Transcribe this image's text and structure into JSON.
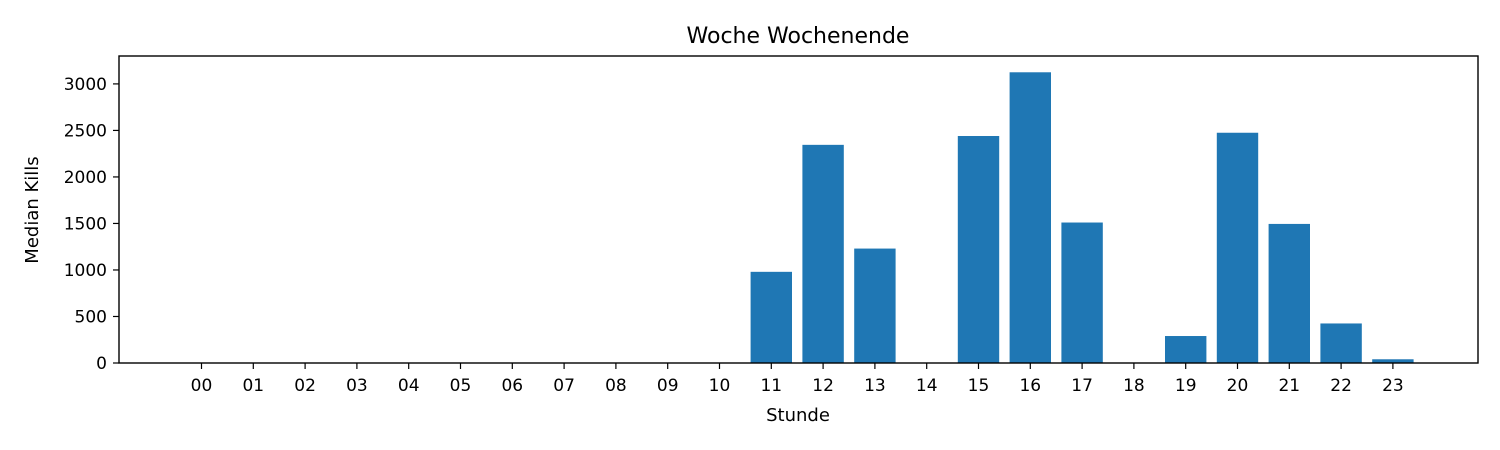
{
  "chart_data": {
    "type": "bar",
    "title": "Woche Wochenende",
    "xlabel": "Stunde",
    "ylabel": "Median Kills",
    "categories": [
      "00",
      "01",
      "02",
      "03",
      "04",
      "05",
      "06",
      "07",
      "08",
      "09",
      "10",
      "11",
      "12",
      "13",
      "14",
      "15",
      "16",
      "17",
      "18",
      "19",
      "20",
      "21",
      "22",
      "23"
    ],
    "values": [
      0,
      0,
      0,
      0,
      0,
      0,
      0,
      0,
      0,
      0,
      0,
      980,
      2345,
      1230,
      0,
      2440,
      3125,
      1510,
      0,
      290,
      2475,
      1495,
      425,
      40
    ],
    "ylim": [
      0,
      3300
    ],
    "yticks": [
      0,
      500,
      1000,
      1500,
      2000,
      2500,
      3000
    ],
    "bar_color": "#1f77b4",
    "grid": false,
    "legend": "none"
  }
}
